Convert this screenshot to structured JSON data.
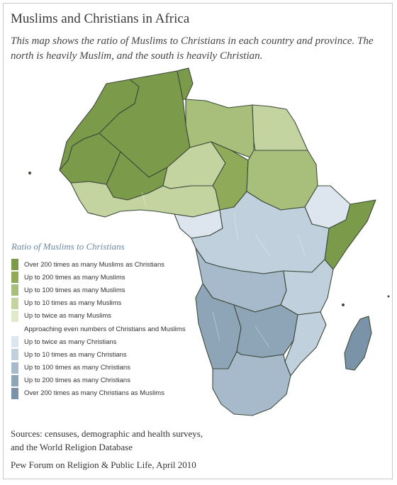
{
  "header": {
    "title": "Muslims and Christians in Africa",
    "subtitle": "This map shows the ratio of Muslims to Christians in each country and province. The north is heavily Muslim, and the south is heavily Christian."
  },
  "legend": {
    "title": "Ratio of Muslims to Christians",
    "items": [
      {
        "label": "Over 200 times as many Muslims as Christians",
        "color": "#7b9a4a"
      },
      {
        "label": "Up to 200 times as many Muslims",
        "color": "#8fab5a"
      },
      {
        "label": "Up to 100 times as many Muslims",
        "color": "#a7bf7a"
      },
      {
        "label": "Up to 10 times as many Muslims",
        "color": "#c4d4a1"
      },
      {
        "label": "Up to twice as many Muslims",
        "color": "#e1e9cc"
      },
      {
        "label": "Approaching even numbers of Christians and Muslims",
        "color": "#ffffff"
      },
      {
        "label": "Up to twice as many Christians",
        "color": "#dde6ee"
      },
      {
        "label": "Up to 10 times as many Christians",
        "color": "#c1d0dd"
      },
      {
        "label": "Up to 100 times as many Christians",
        "color": "#a6bacb"
      },
      {
        "label": "Up to 200 times as many Christians",
        "color": "#8ea5b8"
      },
      {
        "label": "Over 200 times as many Christians as Muslims",
        "color": "#7b93a8"
      }
    ]
  },
  "footer": {
    "sources_line1": "Sources: censuses, demographic and health surveys,",
    "sources_line2": "and the World Religion Database",
    "credit": "Pew Forum on Religion & Public Life, April 2010"
  }
}
